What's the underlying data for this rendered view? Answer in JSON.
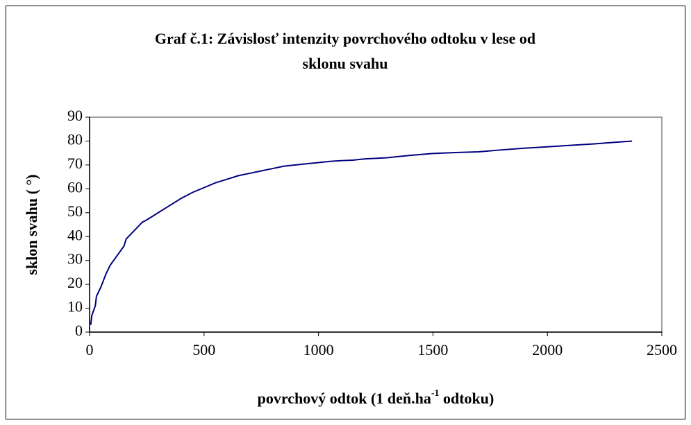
{
  "chart_data": {
    "type": "line",
    "title": [
      "Graf č.1: Závislosť intenzity povrchového odtoku v lese od",
      "sklonu svahu"
    ],
    "x_label": [
      "povrchový odtok (1 deň.ha",
      "-1",
      " odtoku)"
    ],
    "y_label": "sklon svahu ( °)",
    "x": [
      5,
      10,
      25,
      30,
      50,
      70,
      90,
      120,
      150,
      160,
      200,
      230,
      250,
      300,
      350,
      400,
      450,
      500,
      550,
      600,
      650,
      700,
      750,
      800,
      850,
      900,
      950,
      1000,
      1050,
      1100,
      1150,
      1200,
      1300,
      1400,
      1500,
      1600,
      1700,
      1800,
      1900,
      2000,
      2100,
      2200,
      2300,
      2370
    ],
    "series": [
      {
        "name": "sklon svahu",
        "color": "#000080",
        "values": [
          3,
          7,
          11,
          15,
          19,
          24,
          28,
          32,
          36,
          39,
          43,
          46,
          47,
          50,
          53,
          56,
          58.5,
          60.5,
          62.5,
          64,
          65.5,
          66.5,
          67.5,
          68.5,
          69.5,
          70,
          70.5,
          71,
          71.5,
          71.8,
          72,
          72.5,
          73,
          74,
          74.8,
          75.2,
          75.5,
          76.3,
          77,
          77.6,
          78.2,
          78.8,
          79.5,
          80
        ]
      }
    ],
    "xlim": [
      0,
      2500
    ],
    "xticks": [
      0,
      500,
      1000,
      1500,
      2000,
      2500
    ],
    "ylim": [
      0,
      90
    ],
    "yticks": [
      0,
      10,
      20,
      30,
      40,
      50,
      60,
      70,
      80,
      90
    ],
    "grid": false
  }
}
